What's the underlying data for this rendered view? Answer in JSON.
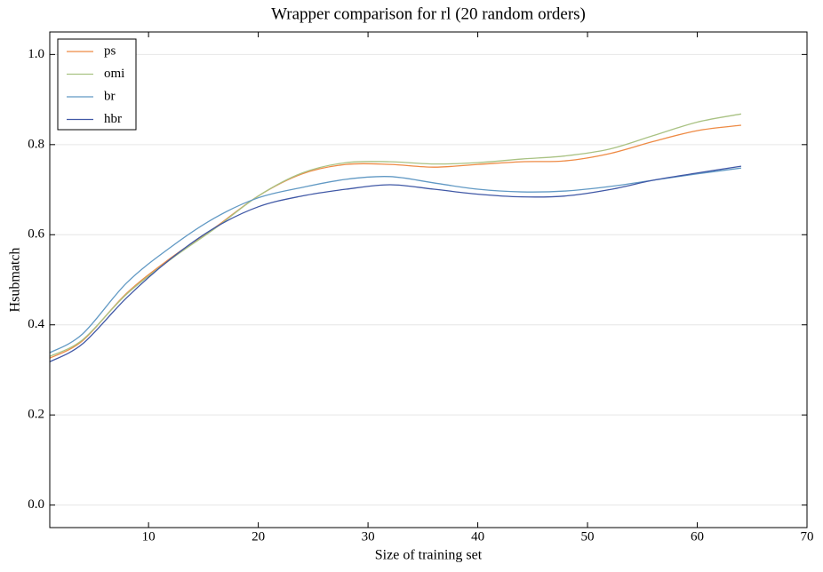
{
  "chart_data": {
    "type": "line",
    "title": "Wrapper comparison for rl (20 random orders)",
    "x_label": "Size of training set",
    "y_label": "Hsubmatch",
    "x": [
      1,
      4,
      8,
      12,
      16,
      20,
      24,
      28,
      32,
      36,
      40,
      44,
      48,
      52,
      56,
      60,
      64
    ],
    "series": [
      {
        "name": "ps",
        "color": "#ee8a44",
        "values": [
          0.326,
          0.365,
          0.47,
          0.548,
          0.615,
          0.686,
          0.735,
          0.756,
          0.756,
          0.75,
          0.756,
          0.762,
          0.764,
          0.78,
          0.807,
          0.831,
          0.843
        ]
      },
      {
        "name": "omi",
        "color": "#a9c283",
        "values": [
          0.33,
          0.367,
          0.468,
          0.545,
          0.613,
          0.686,
          0.737,
          0.76,
          0.762,
          0.757,
          0.76,
          0.768,
          0.775,
          0.79,
          0.82,
          0.85,
          0.868
        ]
      },
      {
        "name": "br",
        "color": "#6199c4",
        "values": [
          0.338,
          0.38,
          0.493,
          0.572,
          0.637,
          0.682,
          0.705,
          0.723,
          0.729,
          0.715,
          0.701,
          0.695,
          0.697,
          0.707,
          0.721,
          0.735,
          0.748
        ]
      },
      {
        "name": "hbr",
        "color": "#4058a6",
        "values": [
          0.318,
          0.358,
          0.46,
          0.546,
          0.615,
          0.662,
          0.686,
          0.701,
          0.711,
          0.701,
          0.69,
          0.684,
          0.686,
          0.7,
          0.721,
          0.737,
          0.752
        ]
      }
    ],
    "xlim": [
      1,
      70
    ],
    "xticks": [
      10,
      20,
      30,
      40,
      50,
      60,
      70
    ],
    "ylim": [
      -0.05,
      1.05
    ],
    "yticks": [
      {
        "value": 0,
        "label": "0.0"
      },
      {
        "value": 0.2,
        "label": "0.2"
      },
      {
        "value": 0.4,
        "label": "0.4"
      },
      {
        "value": 0.6,
        "label": "0.6"
      },
      {
        "value": 0.8,
        "label": "0.8"
      },
      {
        "value": 1,
        "label": "1.0"
      }
    ],
    "grid": true,
    "legend": "upper-left"
  }
}
